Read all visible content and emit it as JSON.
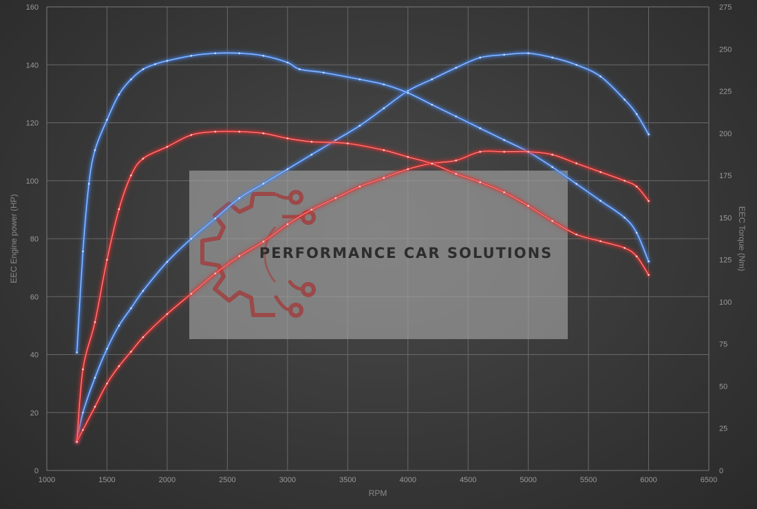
{
  "chart_data": {
    "type": "line",
    "xlabel": "RPM",
    "ylabel_left": "EEC Engine power (HP)",
    "ylabel_right": "EEC Torque (Nm)",
    "xlim": [
      1000,
      6500
    ],
    "ylim_left": [
      0,
      160
    ],
    "ylim_right": [
      0,
      275
    ],
    "x_ticks": [
      1000,
      1500,
      2000,
      2500,
      3000,
      3500,
      4000,
      4500,
      5000,
      5500,
      6000,
      6500
    ],
    "y_left_ticks": [
      0,
      20,
      40,
      60,
      80,
      100,
      120,
      140,
      160
    ],
    "y_right_ticks": [
      0,
      25,
      50,
      75,
      100,
      125,
      150,
      175,
      200,
      225,
      250,
      275
    ],
    "grid": true,
    "series": [
      {
        "color": "#4a86e8",
        "axis": "left",
        "points": [
          [
            1250,
            10
          ],
          [
            1300,
            20
          ],
          [
            1400,
            32
          ],
          [
            1500,
            42
          ],
          [
            1600,
            50
          ],
          [
            1700,
            56
          ],
          [
            1800,
            62
          ],
          [
            2000,
            72
          ],
          [
            2200,
            80
          ],
          [
            2400,
            87
          ],
          [
            2600,
            94
          ],
          [
            2800,
            99
          ],
          [
            3000,
            104
          ],
          [
            3200,
            109
          ],
          [
            3400,
            114
          ],
          [
            3600,
            119
          ],
          [
            3800,
            125
          ],
          [
            4000,
            131
          ],
          [
            4200,
            135
          ],
          [
            4400,
            139
          ],
          [
            4600,
            142.5
          ],
          [
            4800,
            143.5
          ],
          [
            5000,
            144
          ],
          [
            5200,
            142.5
          ],
          [
            5400,
            140
          ],
          [
            5600,
            136
          ],
          [
            5800,
            128
          ],
          [
            5900,
            123
          ],
          [
            6000,
            116
          ]
        ]
      },
      {
        "color": "#4a86e8",
        "axis": "right",
        "points": [
          [
            1250,
            70
          ],
          [
            1300,
            130
          ],
          [
            1350,
            170
          ],
          [
            1400,
            190
          ],
          [
            1500,
            208
          ],
          [
            1600,
            223
          ],
          [
            1700,
            232
          ],
          [
            1800,
            238
          ],
          [
            1900,
            241
          ],
          [
            2000,
            243
          ],
          [
            2200,
            246
          ],
          [
            2400,
            247.5
          ],
          [
            2600,
            247.5
          ],
          [
            2800,
            246
          ],
          [
            3000,
            242
          ],
          [
            3100,
            238
          ],
          [
            3300,
            236
          ],
          [
            3600,
            232
          ],
          [
            3800,
            229
          ],
          [
            4000,
            224
          ],
          [
            4200,
            217
          ],
          [
            4400,
            210
          ],
          [
            4600,
            203
          ],
          [
            4800,
            196
          ],
          [
            5000,
            189
          ],
          [
            5200,
            180
          ],
          [
            5400,
            170
          ],
          [
            5600,
            160
          ],
          [
            5800,
            150
          ],
          [
            5900,
            141
          ],
          [
            6000,
            124
          ]
        ]
      },
      {
        "color": "#e03030",
        "axis": "left",
        "points": [
          [
            1250,
            10
          ],
          [
            1300,
            14
          ],
          [
            1400,
            22
          ],
          [
            1500,
            30
          ],
          [
            1600,
            36
          ],
          [
            1700,
            41
          ],
          [
            1800,
            46
          ],
          [
            2000,
            54
          ],
          [
            2200,
            61
          ],
          [
            2400,
            68
          ],
          [
            2600,
            74
          ],
          [
            2800,
            79
          ],
          [
            3000,
            85
          ],
          [
            3200,
            90
          ],
          [
            3400,
            94
          ],
          [
            3600,
            98
          ],
          [
            3800,
            101
          ],
          [
            4000,
            104
          ],
          [
            4200,
            106
          ],
          [
            4400,
            107
          ],
          [
            4600,
            110
          ],
          [
            4800,
            110
          ],
          [
            5000,
            110
          ],
          [
            5200,
            109
          ],
          [
            5400,
            106
          ],
          [
            5600,
            103
          ],
          [
            5800,
            100
          ],
          [
            5900,
            98
          ],
          [
            6000,
            93
          ]
        ]
      },
      {
        "color": "#e03030",
        "axis": "right",
        "points": [
          [
            1250,
            17
          ],
          [
            1300,
            60
          ],
          [
            1400,
            88
          ],
          [
            1500,
            125
          ],
          [
            1600,
            155
          ],
          [
            1700,
            175
          ],
          [
            1800,
            185
          ],
          [
            2000,
            192
          ],
          [
            2200,
            199
          ],
          [
            2400,
            201
          ],
          [
            2600,
            201
          ],
          [
            2800,
            200
          ],
          [
            3000,
            197
          ],
          [
            3200,
            195
          ],
          [
            3500,
            194
          ],
          [
            3800,
            190
          ],
          [
            4000,
            186
          ],
          [
            4200,
            182
          ],
          [
            4400,
            176
          ],
          [
            4600,
            171
          ],
          [
            4800,
            165
          ],
          [
            5000,
            157
          ],
          [
            5200,
            148
          ],
          [
            5400,
            140
          ],
          [
            5600,
            136
          ],
          [
            5800,
            132
          ],
          [
            5900,
            127
          ],
          [
            6000,
            116
          ]
        ]
      }
    ]
  },
  "watermark": {
    "text": "PERFORMANCE CAR SOLUTIONS",
    "gear_color": "#a04040",
    "panel_color": "#a8a8a8"
  }
}
